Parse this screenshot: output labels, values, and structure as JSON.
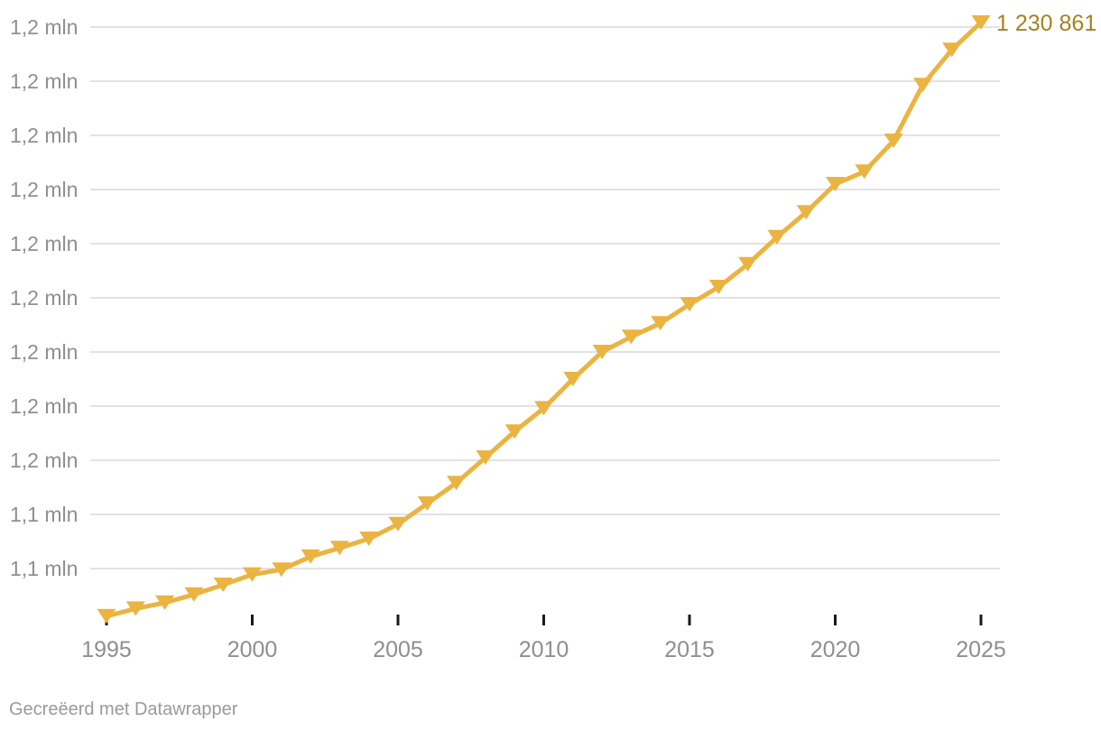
{
  "page": {
    "background": "#ffffff"
  },
  "footer": {
    "text": "Gecreëerd met Datawrapper"
  },
  "chart_data": {
    "type": "line",
    "title": "",
    "xlabel": "",
    "ylabel": "",
    "legend_position": "none",
    "grid": true,
    "marker_shape": "triangle-down",
    "x": [
      1995,
      1996,
      1997,
      1998,
      1999,
      2000,
      2001,
      2002,
      2003,
      2004,
      2005,
      2006,
      2007,
      2008,
      2009,
      2010,
      2011,
      2012,
      2013,
      2014,
      2015,
      2016,
      2017,
      2018,
      2019,
      2020,
      2021,
      2022,
      2023,
      2024,
      2025
    ],
    "values": [
      1121200,
      1122600,
      1123700,
      1125200,
      1127000,
      1128900,
      1129800,
      1132200,
      1133800,
      1135500,
      1138200,
      1142000,
      1145800,
      1150500,
      1155300,
      1159600,
      1165000,
      1170000,
      1172800,
      1175300,
      1178800,
      1182000,
      1186200,
      1191200,
      1195800,
      1201000,
      1203300,
      1209000,
      1219300,
      1225800,
      1230861
    ],
    "end_value": 1230861,
    "end_label": "1 230 861",
    "x_ticks": [
      1995,
      2000,
      2005,
      2010,
      2015,
      2020,
      2025
    ],
    "x_tick_labels": [
      "1995",
      "2000",
      "2005",
      "2010",
      "2015",
      "2020",
      "2025"
    ],
    "y_gridlines": [
      {
        "value": 1230000,
        "label": "1,2 mln"
      },
      {
        "value": 1220000,
        "label": "1,2 mln"
      },
      {
        "value": 1210000,
        "label": "1,2 mln"
      },
      {
        "value": 1200000,
        "label": "1,2 mln"
      },
      {
        "value": 1190000,
        "label": "1,2 mln"
      },
      {
        "value": 1180000,
        "label": "1,2 mln"
      },
      {
        "value": 1170000,
        "label": "1,2 mln"
      },
      {
        "value": 1160000,
        "label": "1,2 mln"
      },
      {
        "value": 1150000,
        "label": "1,2 mln"
      },
      {
        "value": 1140000,
        "label": "1,1 mln"
      },
      {
        "value": 1130000,
        "label": "1,1 mln"
      }
    ],
    "y_axis": {
      "top_value": 1230000,
      "step": 10000,
      "unit": "mln",
      "min": 1120000,
      "max": 1235000
    },
    "x_axis": {
      "min": 1995,
      "max": 2025
    },
    "colors": {
      "line": "#EBB340",
      "marker": "#EBB340",
      "end_label": "#A5821E",
      "axis_text": "#8F8F8F",
      "gridline": "#E2E2E2",
      "tick": "#1A1A1A",
      "footer_text": "#9A9A9A"
    }
  }
}
